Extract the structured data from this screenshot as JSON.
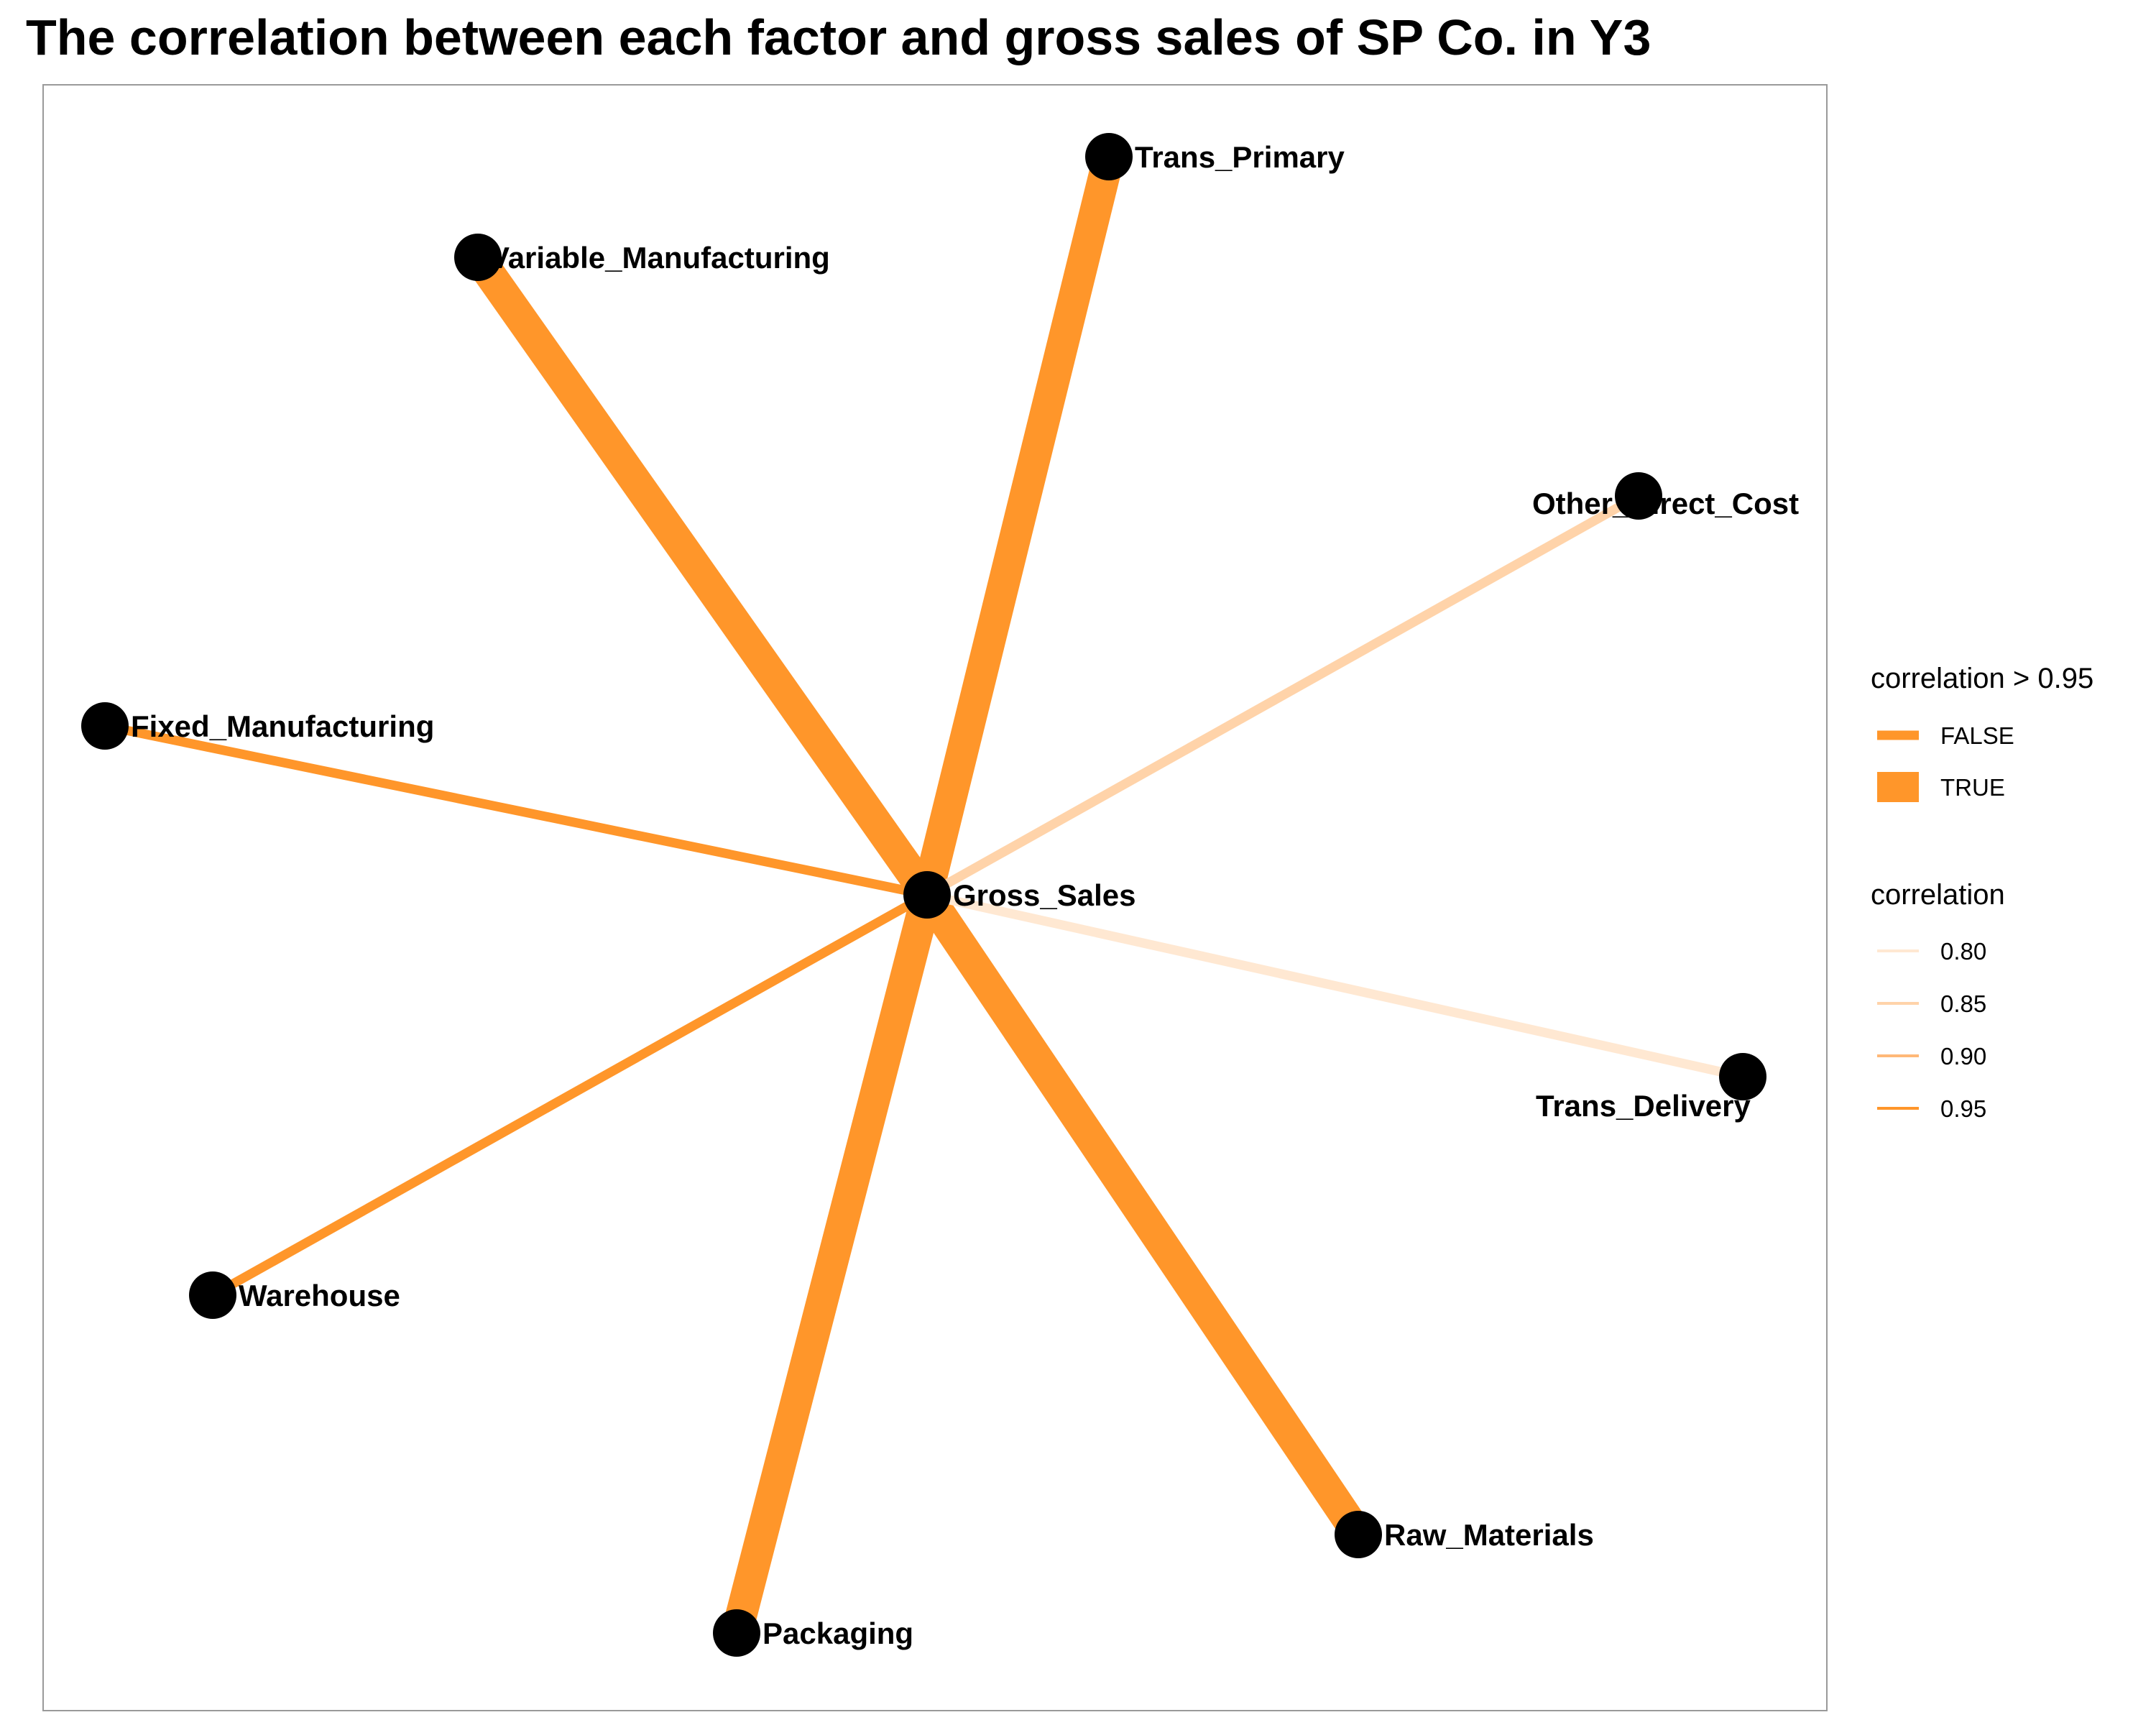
{
  "title": "The correlation between each factor and gross sales of SP Co. in Y3",
  "colors": {
    "strong": "#FF962A",
    "c080": "#FFE8D2",
    "c085": "#FFD3A9",
    "c090": "#FFB878",
    "c095": "#FF962A",
    "node": "#000000",
    "panel_border": "#9a9a9a"
  },
  "chart_data": {
    "type": "network",
    "center": "Gross_Sales",
    "nodes": [
      "Gross_Sales",
      "Trans_Primary",
      "Variable_Manufacturing",
      "Other_Direct_Cost",
      "Fixed_Manufacturing",
      "Trans_Delivery",
      "Warehouse",
      "Raw_Materials",
      "Packaging"
    ],
    "edges": [
      {
        "from": "Gross_Sales",
        "to": "Trans_Primary",
        "above_095": true
      },
      {
        "from": "Gross_Sales",
        "to": "Variable_Manufacturing",
        "above_095": true
      },
      {
        "from": "Gross_Sales",
        "to": "Raw_Materials",
        "above_095": true
      },
      {
        "from": "Gross_Sales",
        "to": "Packaging",
        "above_095": true
      },
      {
        "from": "Gross_Sales",
        "to": "Other_Direct_Cost",
        "correlation": 0.84,
        "above_095": false
      },
      {
        "from": "Gross_Sales",
        "to": "Trans_Delivery",
        "correlation": 0.8,
        "above_095": false
      },
      {
        "from": "Gross_Sales",
        "to": "Fixed_Manufacturing",
        "correlation": 0.95,
        "above_095": false
      },
      {
        "from": "Gross_Sales",
        "to": "Warehouse",
        "correlation": 0.95,
        "above_095": false
      }
    ]
  },
  "legend": {
    "size_title": "correlation > 0.95",
    "size_items": [
      "FALSE",
      "TRUE"
    ],
    "color_title": "correlation",
    "color_items": [
      "0.80",
      "0.85",
      "0.90",
      "0.95"
    ]
  }
}
